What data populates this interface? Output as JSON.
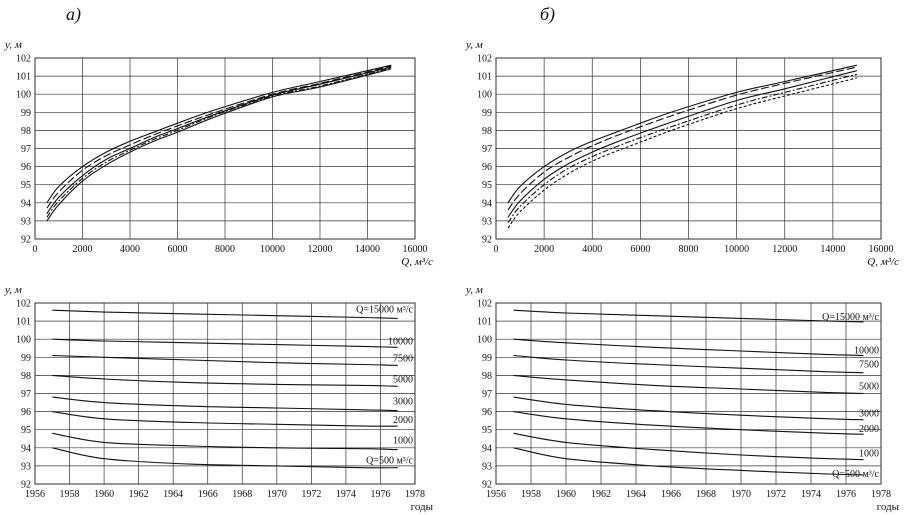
{
  "panel_labels": [
    "a)",
    "б)"
  ],
  "chart_data": [
    {
      "id": "top-left",
      "type": "line",
      "ylabel": "y, м",
      "xlabel": "Q, м³/с",
      "xlim": [
        0,
        16000
      ],
      "ylim": [
        92,
        102
      ],
      "xticks": [
        0,
        2000,
        4000,
        6000,
        8000,
        10000,
        12000,
        14000,
        16000
      ],
      "yticks": [
        92,
        93,
        94,
        95,
        96,
        97,
        98,
        99,
        100,
        101,
        102
      ],
      "grid": true,
      "series": [
        {
          "x": [
            500,
            1000,
            2000,
            3000,
            4000,
            5000,
            6000,
            7500,
            10000,
            12000,
            15000
          ],
          "y": [
            94.0,
            94.9,
            96.0,
            96.8,
            97.4,
            97.9,
            98.4,
            99.1,
            100.1,
            100.7,
            101.6
          ],
          "dash": "none"
        },
        {
          "x": [
            500,
            1000,
            2000,
            3000,
            4000,
            5000,
            6000,
            7500,
            10000,
            12000,
            15000
          ],
          "y": [
            93.7,
            94.6,
            95.8,
            96.6,
            97.2,
            97.75,
            98.25,
            98.95,
            100.0,
            100.6,
            101.55
          ],
          "dash": "8 3"
        },
        {
          "x": [
            500,
            1000,
            2000,
            3000,
            4000,
            5000,
            6000,
            7500,
            10000,
            12000,
            15000
          ],
          "y": [
            93.4,
            94.3,
            95.5,
            96.4,
            97.0,
            97.6,
            98.1,
            98.85,
            99.95,
            100.55,
            101.5
          ],
          "dash": "none"
        },
        {
          "x": [
            500,
            1000,
            2000,
            3000,
            4000,
            5000,
            6000,
            7500,
            10000,
            12000,
            15000
          ],
          "y": [
            93.2,
            94.1,
            95.35,
            96.25,
            96.9,
            97.5,
            98.0,
            98.8,
            99.9,
            100.45,
            101.45
          ],
          "dash": "6 2 2 2"
        },
        {
          "x": [
            500,
            1000,
            2000,
            3000,
            4000,
            5000,
            6000,
            7500,
            10000,
            12000,
            15000
          ],
          "y": [
            93.0,
            93.9,
            95.2,
            96.1,
            96.8,
            97.4,
            97.9,
            98.7,
            99.85,
            100.4,
            101.4
          ],
          "dash": "none"
        }
      ]
    },
    {
      "id": "top-right",
      "type": "line",
      "ylabel": "y, м",
      "xlabel": "Q, м³/с",
      "xlim": [
        0,
        16000
      ],
      "ylim": [
        92,
        102
      ],
      "xticks": [
        0,
        2000,
        4000,
        6000,
        8000,
        10000,
        12000,
        14000,
        16000
      ],
      "yticks": [
        92,
        93,
        94,
        95,
        96,
        97,
        98,
        99,
        100,
        101,
        102
      ],
      "grid": true,
      "series": [
        {
          "x": [
            500,
            1000,
            2000,
            3000,
            4000,
            5000,
            6000,
            7500,
            10000,
            12000,
            15000
          ],
          "y": [
            94.0,
            94.9,
            96.0,
            96.8,
            97.4,
            97.9,
            98.4,
            99.1,
            100.1,
            100.7,
            101.6
          ],
          "dash": "none"
        },
        {
          "x": [
            500,
            1000,
            2000,
            3000,
            4000,
            5000,
            6000,
            7500,
            10000,
            12000,
            15000
          ],
          "y": [
            93.6,
            94.5,
            95.7,
            96.5,
            97.15,
            97.7,
            98.2,
            98.9,
            99.95,
            100.6,
            101.5
          ],
          "dash": "8 3"
        },
        {
          "x": [
            500,
            1000,
            2000,
            3000,
            4000,
            5000,
            6000,
            7500,
            10000,
            12000,
            15000
          ],
          "y": [
            93.2,
            94.1,
            95.3,
            96.15,
            96.8,
            97.35,
            97.85,
            98.55,
            99.65,
            100.3,
            101.3
          ],
          "dash": "none"
        },
        {
          "x": [
            500,
            1000,
            2000,
            3000,
            4000,
            5000,
            6000,
            7500,
            10000,
            12000,
            15000
          ],
          "y": [
            92.9,
            93.8,
            95.0,
            95.9,
            96.55,
            97.1,
            97.6,
            98.3,
            99.4,
            100.1,
            101.1
          ],
          "dash": "6 2 2 2"
        },
        {
          "x": [
            500,
            1000,
            2000,
            3000,
            4000,
            5000,
            6000,
            7500,
            10000,
            12000,
            15000
          ],
          "y": [
            92.6,
            93.5,
            94.7,
            95.6,
            96.3,
            96.85,
            97.35,
            98.1,
            99.2,
            99.9,
            100.9
          ],
          "dash": "3 2"
        }
      ]
    },
    {
      "id": "bottom-left",
      "type": "line",
      "ylabel": "y, м",
      "xlabel": "годы",
      "xlim": [
        1956,
        1978
      ],
      "ylim": [
        92,
        102
      ],
      "xticks": [
        1956,
        1958,
        1960,
        1962,
        1964,
        1966,
        1968,
        1970,
        1972,
        1974,
        1976,
        1978
      ],
      "yticks": [
        92,
        93,
        94,
        95,
        96,
        97,
        98,
        99,
        100,
        101,
        102
      ],
      "grid": true,
      "series": [
        {
          "name": "Q=15000 м³/с",
          "x": [
            1957,
            1960,
            1965,
            1970,
            1975,
            1977
          ],
          "y": [
            101.6,
            101.5,
            101.4,
            101.3,
            101.2,
            101.15
          ]
        },
        {
          "name": "10000",
          "x": [
            1957,
            1960,
            1965,
            1970,
            1975,
            1977
          ],
          "y": [
            100.0,
            99.9,
            99.8,
            99.7,
            99.6,
            99.55
          ]
        },
        {
          "name": "7500",
          "x": [
            1957,
            1960,
            1965,
            1970,
            1975,
            1977
          ],
          "y": [
            99.1,
            99.0,
            98.85,
            98.7,
            98.6,
            98.55
          ]
        },
        {
          "name": "5000",
          "x": [
            1957,
            1960,
            1965,
            1970,
            1975,
            1977
          ],
          "y": [
            98.0,
            97.8,
            97.6,
            97.5,
            97.45,
            97.4
          ]
        },
        {
          "name": "3000",
          "x": [
            1957,
            1960,
            1965,
            1970,
            1975,
            1977
          ],
          "y": [
            96.8,
            96.5,
            96.3,
            96.2,
            96.1,
            96.05
          ]
        },
        {
          "name": "2000",
          "x": [
            1957,
            1960,
            1965,
            1970,
            1975,
            1977
          ],
          "y": [
            96.0,
            95.6,
            95.4,
            95.3,
            95.2,
            95.2
          ]
        },
        {
          "name": "1000",
          "x": [
            1957,
            1960,
            1965,
            1970,
            1975,
            1977
          ],
          "y": [
            94.8,
            94.3,
            94.1,
            94.0,
            93.95,
            93.9
          ]
        },
        {
          "name": "Q=500 м³/с",
          "x": [
            1957,
            1960,
            1965,
            1970,
            1975,
            1977
          ],
          "y": [
            94.0,
            93.4,
            93.1,
            93.0,
            92.9,
            92.9
          ]
        }
      ]
    },
    {
      "id": "bottom-right",
      "type": "line",
      "ylabel": "y, м",
      "xlabel": "годы",
      "xlim": [
        1956,
        1978
      ],
      "ylim": [
        92,
        102
      ],
      "xticks": [
        1956,
        1958,
        1960,
        1962,
        1964,
        1966,
        1968,
        1970,
        1972,
        1974,
        1976,
        1978
      ],
      "yticks": [
        92,
        93,
        94,
        95,
        96,
        97,
        98,
        99,
        100,
        101,
        102
      ],
      "grid": true,
      "series": [
        {
          "name": "Q=15000 м³/с",
          "x": [
            1957,
            1960,
            1965,
            1970,
            1975,
            1977
          ],
          "y": [
            101.6,
            101.45,
            101.3,
            101.15,
            101.0,
            100.95
          ]
        },
        {
          "name": "10000",
          "x": [
            1957,
            1960,
            1965,
            1970,
            1975,
            1977
          ],
          "y": [
            100.0,
            99.8,
            99.55,
            99.35,
            99.15,
            99.1
          ]
        },
        {
          "name": "7500",
          "x": [
            1957,
            1960,
            1965,
            1970,
            1975,
            1977
          ],
          "y": [
            99.1,
            98.85,
            98.6,
            98.4,
            98.2,
            98.15
          ]
        },
        {
          "name": "5000",
          "x": [
            1957,
            1960,
            1965,
            1970,
            1975,
            1977
          ],
          "y": [
            98.0,
            97.75,
            97.45,
            97.25,
            97.05,
            97.0
          ]
        },
        {
          "name": "3000",
          "x": [
            1957,
            1960,
            1965,
            1970,
            1975,
            1977
          ],
          "y": [
            96.8,
            96.4,
            96.05,
            95.8,
            95.6,
            95.55
          ]
        },
        {
          "name": "2000",
          "x": [
            1957,
            1960,
            1965,
            1970,
            1975,
            1977
          ],
          "y": [
            96.0,
            95.6,
            95.25,
            95.0,
            94.8,
            94.75
          ]
        },
        {
          "name": "1000",
          "x": [
            1957,
            1960,
            1965,
            1970,
            1975,
            1977
          ],
          "y": [
            94.8,
            94.3,
            93.9,
            93.6,
            93.4,
            93.35
          ]
        },
        {
          "name": "Q=500 м³/с",
          "x": [
            1957,
            1960,
            1965,
            1970,
            1975,
            1977
          ],
          "y": [
            94.0,
            93.4,
            93.0,
            92.75,
            92.55,
            92.5
          ]
        }
      ]
    }
  ]
}
